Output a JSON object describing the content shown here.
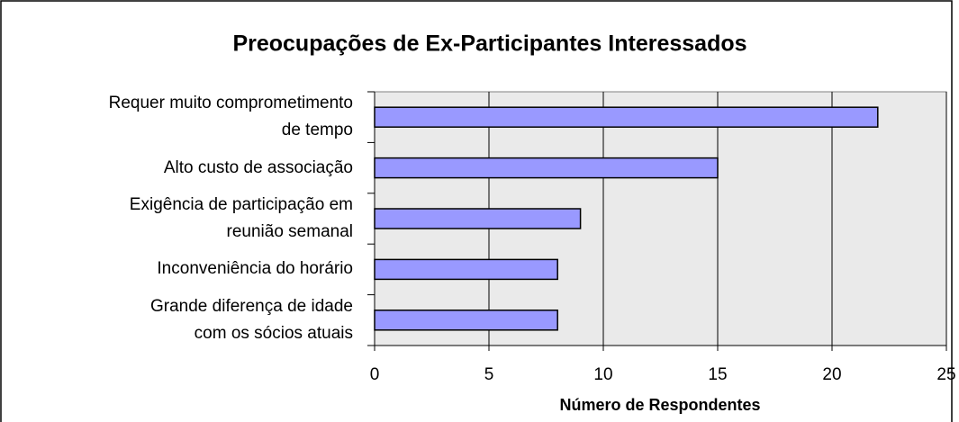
{
  "chart_data": {
    "type": "barh",
    "title": "Preocupações de Ex-Participantes Interessados",
    "xlabel": "Número de Respondentes",
    "categories": [
      "Requer muito comprometimento\nde tempo",
      "Alto custo de associação",
      "Exigência de participação em\nreunião semanal",
      "Inconveniência do horário",
      "Grande diferença de idade\ncom os sócios atuais"
    ],
    "values": [
      22,
      15,
      9,
      8,
      8
    ],
    "color": "#9999ff",
    "xlim": [
      0,
      25
    ],
    "xticks": [
      0,
      5,
      10,
      15,
      20,
      25
    ],
    "grid": true
  }
}
